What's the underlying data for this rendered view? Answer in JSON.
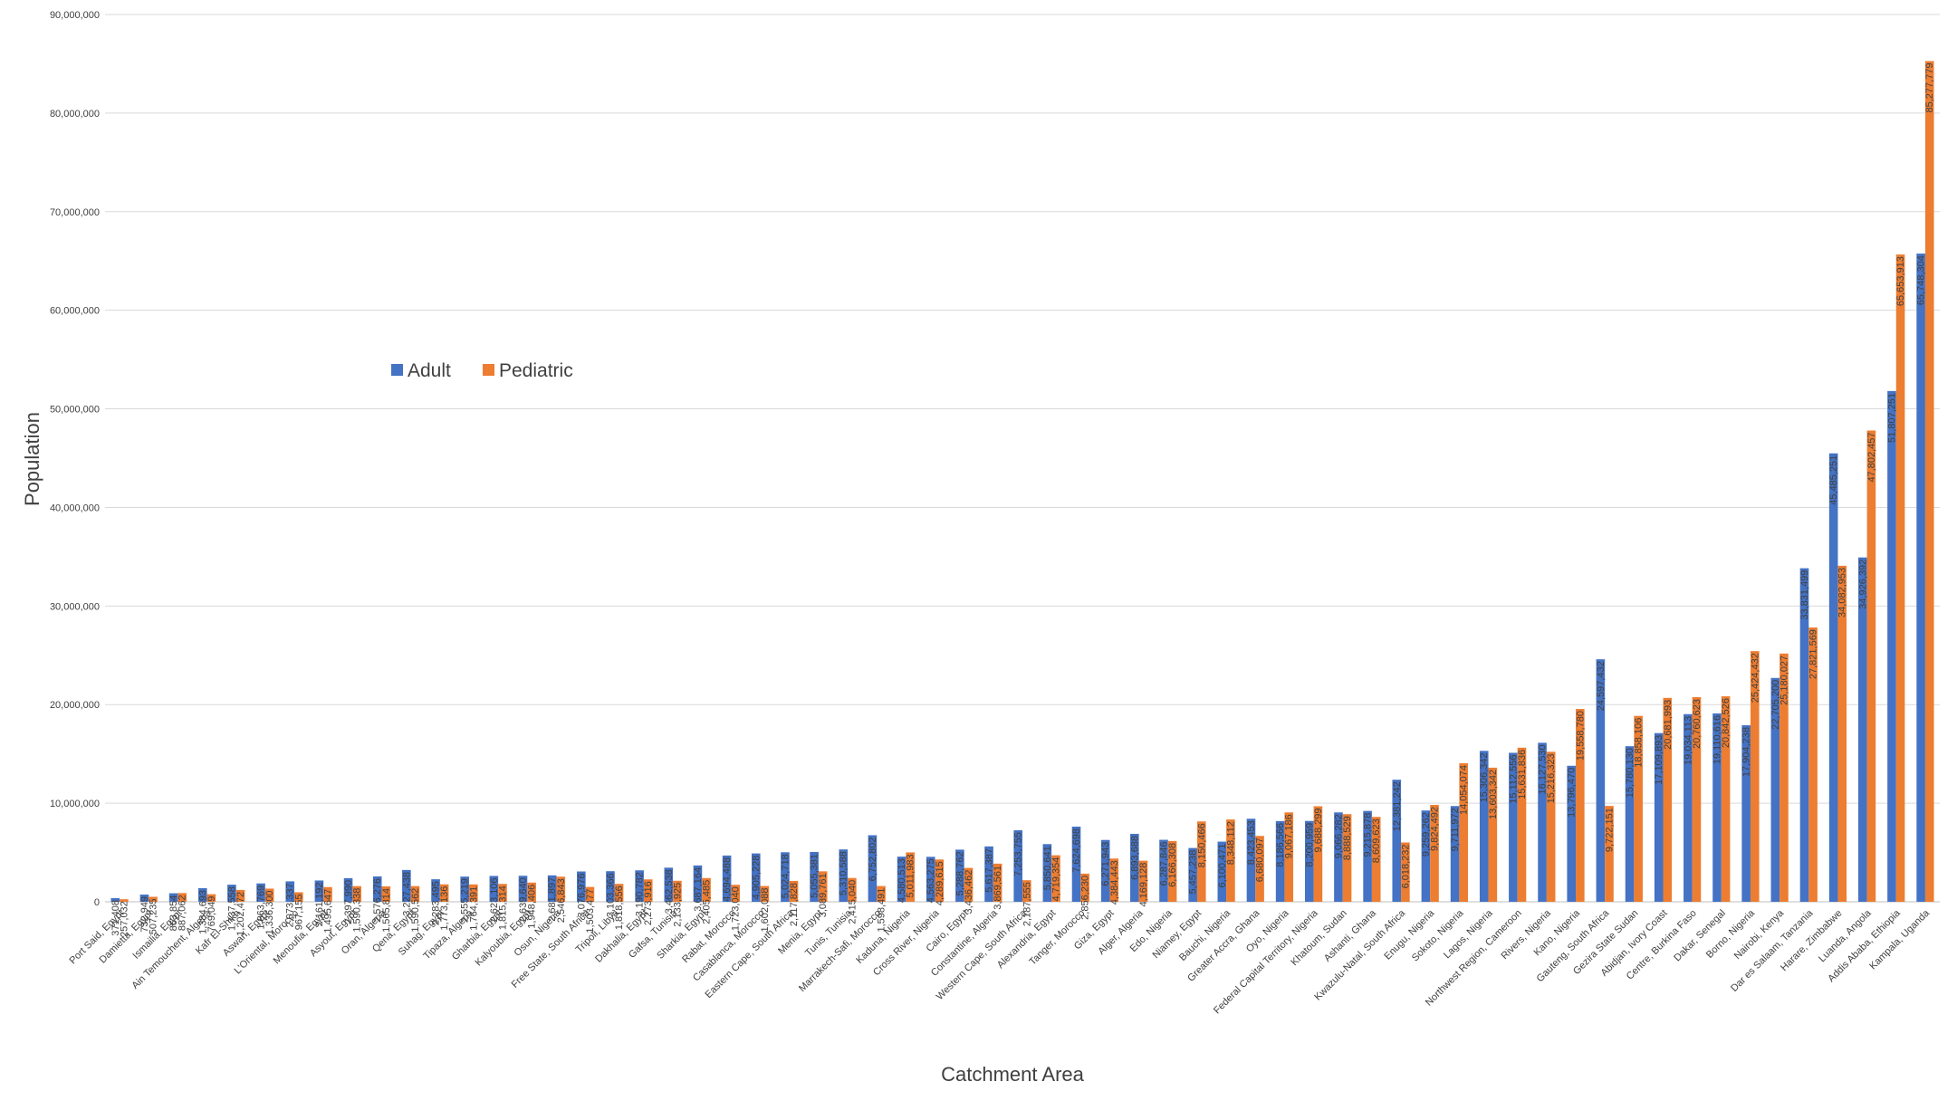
{
  "chart_data": {
    "type": "bar",
    "title": "",
    "xlabel": "Catchment Area",
    "ylabel": "Population",
    "ylim": [
      0,
      90000000
    ],
    "y_ticks": [
      "0",
      "10,000,000",
      "20,000,000",
      "30,000,000",
      "40,000,000",
      "50,000,000",
      "60,000,000",
      "70,000,000",
      "80,000,000",
      "90,000,000"
    ],
    "grid": true,
    "legend_position": "left",
    "colors": {
      "Adult": "#4472c4",
      "Pediatric": "#ed7d31"
    },
    "categories": [
      "Port Said, Egypt",
      "Damietta, Egypt",
      "Ismailia, Egypt",
      "Ain Temouchent, Algeria",
      "Kafr El-Shikh",
      "Aswan, Egypt",
      "L'Oriental, Morocco",
      "Menoufia, Egypt",
      "Asyout, Egypt",
      "Oran, Algeria",
      "Qena, Egypt",
      "Suhag, Egypt",
      "Tipaza, Algeria",
      "Gharbia, Egypt",
      "Kalyoubia, Egypt",
      "Osun, Nigeria",
      "Free State, South Africa",
      "Tripoli, Libya",
      "Dakhalia, Egypt",
      "Gafsa, Tunisia",
      "Sharkia, Egypt",
      "Rabat, Morocco",
      "Casablanca, Morocco",
      "Eastern Cape, South Africa",
      "Menia, Egypt",
      "Tunis, Tunisia",
      "Marrakech-Safi, Morocco",
      "Kaduna, Nigeria",
      "Cross River, Nigeria",
      "Cairo, Egypt",
      "Constantine, Algeria",
      "Western Cape, South Africa",
      "Alexandria, Egypt",
      "Tanger, Morocco",
      "Giza, Egypt",
      "Alger, Algeria",
      "Edo, Nigeria",
      "Niamey, Egypt",
      "Bauchi, Nigeria",
      "Greater Accra, Ghana",
      "Oyo, Nigeria",
      "Federal Capital Territory, Nigeria",
      "Khatoum, Sudan",
      "Ashanti, Ghana",
      "Kwazulu-Natal, South Africa",
      "Enugu, Nigeria",
      "Sokoto, Nigeria",
      "Lagos, Nigeria",
      "Northwest Region, Cameroon",
      "Rivers, Nigeria",
      "Kano, Nigeria",
      "Gauteng, South Africa",
      "Gezira State Sudan",
      "Abidjan, Ivory Coast",
      "Centre, Burkina Faso",
      "Dakar, Senegal",
      "Borno, Nigeria",
      "Nairobi, Kenya",
      "Dar es Salaam, Tanzania",
      "Harare, Zimbabwe",
      "Luanda, Angola",
      "Addis Ababa, Ethiopia",
      "Kampala, Uganda"
    ],
    "series": [
      {
        "name": "Adult",
        "values": [
          371408,
          732949,
          863854,
          1384693,
          1737558,
          1863769,
          2073337,
          2161192,
          2397990,
          2576276,
          3227438,
          2283495,
          2555219,
          2623106,
          2639640,
          2681897,
          3076976,
          3103366,
          3190782,
          3462538,
          3687164,
          4694488,
          4905228,
          5024718,
          5055381,
          5310588,
          6752802,
          4580513,
          4563275,
          5288762,
          5617387,
          7253755,
          5850641,
          7624698,
          6271943,
          6893688,
          6287846,
          5457238,
          6100471,
          8423453,
          8186566,
          8200959,
          9066282,
          9215878,
          12381242,
          9259262,
          9711972,
          15306342,
          15112556,
          16127530,
          13796470,
          24597432,
          15780130,
          17109893,
          19034113,
          19110616,
          17904238,
          22705200,
          33831499,
          45485251,
          34926392,
          51807251,
          65748304
        ]
      },
      {
        "name": "Pediatric",
        "values": [
          257032,
          507235,
          887062,
          769049,
          1202472,
          1336300,
          967155,
          1495647,
          1590338,
          1565814,
          1590562,
          1773136,
          1764391,
          1815314,
          1948406,
          2546843,
          1503477,
          1818556,
          2273916,
          2133925,
          2405485,
          1723040,
          1602088,
          2117828,
          3089761,
          2415040,
          1598491,
          5011983,
          4289615,
          3436462,
          3869561,
          2187555,
          4719354,
          2856230,
          4384443,
          4169128,
          6166308,
          8150466,
          8348112,
          6680097,
          9067186,
          9688299,
          8888529,
          8609623,
          6018232,
          9824492,
          14054074,
          13603342,
          15631836,
          15216323,
          19558780,
          9722151,
          18858106,
          20681993,
          20760623,
          20842526,
          25424432,
          25180027,
          27821569,
          34082953,
          47802457,
          65653913,
          85277779
        ]
      }
    ]
  }
}
